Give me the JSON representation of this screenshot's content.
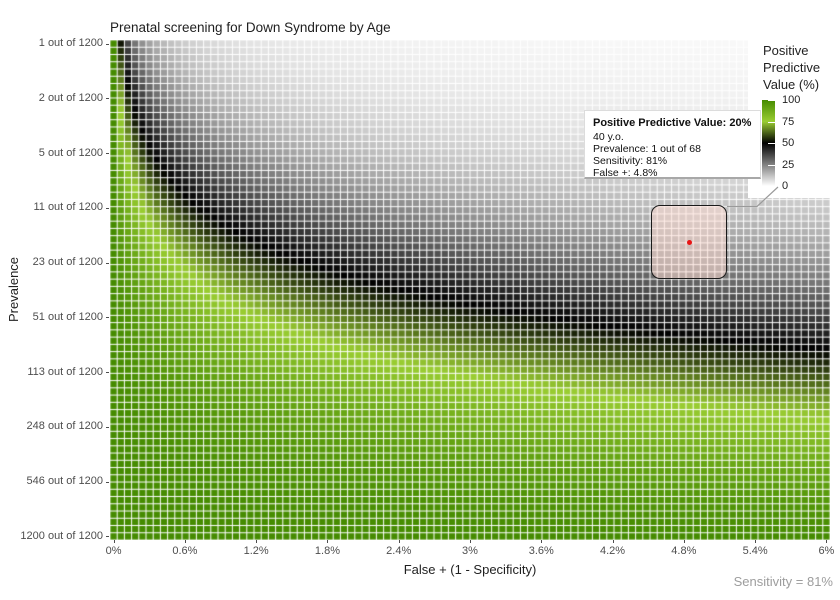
{
  "title": "Prenatal screening for Down Syndrome by Age",
  "axes": {
    "x_label": "False + (1 - Specificity)",
    "y_label": "Prevalence",
    "x_ticks": [
      "0%",
      "0.6%",
      "1.2%",
      "1.8%",
      "2.4%",
      "3%",
      "3.6%",
      "4.2%",
      "4.8%",
      "5.4%",
      "6%"
    ],
    "y_ticks": [
      "1 out of 1200",
      "2 out of 1200",
      "5 out of 1200",
      "11 out of 1200",
      "23 out of 1200",
      "51 out of 1200",
      "113 out of 1200",
      "248 out of 1200",
      "546 out of 1200",
      "1200 out of 1200"
    ]
  },
  "legend": {
    "title_lines": [
      "Positive",
      "Predictive",
      "Value (%)"
    ],
    "ticks": [
      "100",
      "75",
      "50",
      "25",
      "0"
    ]
  },
  "tooltip": {
    "title": "Positive Predictive Value: 20%",
    "lines": [
      "40 y.o.",
      "Prevalence: 1 out of 68",
      "Sensitivity: 81%",
      "False +: 4.8%"
    ]
  },
  "caption": "Sensitivity = 81%",
  "chart_data": {
    "type": "heatmap",
    "title": "Prenatal screening for Down Syndrome by Age",
    "xlabel": "False + (1 - Specificity)",
    "ylabel": "Prevalence",
    "sensitivity": 0.81,
    "x": {
      "min": 0,
      "max": 0.06,
      "cols": 100,
      "tick_values": [
        0,
        0.006,
        0.012,
        0.018,
        0.024,
        0.03,
        0.036,
        0.042,
        0.048,
        0.054,
        0.06
      ]
    },
    "y": {
      "scale": "log",
      "denominator": 1200,
      "rows": 69,
      "tick_numerators": [
        1,
        2,
        5,
        11,
        23,
        51,
        113,
        248,
        546,
        1200
      ]
    },
    "value_formula": "PPV% = 100 * sensitivity*prevalence / (sensitivity*prevalence + false_positive_rate*(1 - prevalence))",
    "color_stops": [
      {
        "value": 0,
        "color": "#FFFFFF"
      },
      {
        "value": 50,
        "color": "#000000"
      },
      {
        "value": 75,
        "color": "#9ACD32"
      },
      {
        "value": 100,
        "color": "#458B00"
      }
    ],
    "grid_line_color": "#FFFFFF",
    "legend_title": "Positive Predictive Value (%)",
    "legend_ticks": [
      100,
      75,
      50,
      25,
      0
    ],
    "highlight_point": {
      "age": "40 y.o.",
      "prevalence_label": "1 out of 68",
      "prevalence_value": 0.014706,
      "false_positive_rate": 0.048,
      "sensitivity_percent": 81,
      "ppv_percent": 20
    },
    "ppv_matrix_at_ticks_percent": [
      [
        100,
        10.1,
        5.3,
        3.6,
        2.7,
        2.2,
        1.8,
        1.6,
        1.4,
        1.2,
        1.1
      ],
      [
        100,
        18.4,
        10.1,
        7.0,
        5.3,
        4.3,
        3.6,
        3.1,
        2.7,
        2.4,
        2.2
      ],
      [
        100,
        36.1,
        22.0,
        15.8,
        12.4,
        10.2,
        8.6,
        7.5,
        6.6,
        5.9,
        5.3
      ],
      [
        100,
        55.5,
        38.4,
        29.4,
        23.8,
        20.0,
        17.2,
        15.1,
        13.5,
        12.2,
        11.1
      ],
      [
        100,
        72.5,
        56.9,
        46.8,
        39.7,
        34.5,
        30.5,
        27.4,
        24.8,
        22.7,
        20.9
      ],
      [
        100,
        85.7,
        75.0,
        66.6,
        60.0,
        54.5,
        50.0,
        46.1,
        42.8,
        40.0,
        37.5
      ],
      [
        100,
        93.3,
        87.5,
        82.4,
        77.8,
        73.7,
        70.0,
        66.7,
        63.7,
        60.9,
        58.4
      ],
      [
        100,
        97.2,
        94.6,
        92.1,
        89.8,
        87.6,
        85.4,
        83.4,
        81.5,
        79.6,
        77.9
      ],
      [
        100,
        99.1,
        98.3,
        97.4,
        96.6,
        95.8,
        94.9,
        94.2,
        93.4,
        92.6,
        91.8
      ],
      [
        100,
        100,
        100,
        100,
        100,
        100,
        100,
        100,
        100,
        100,
        100
      ]
    ]
  }
}
